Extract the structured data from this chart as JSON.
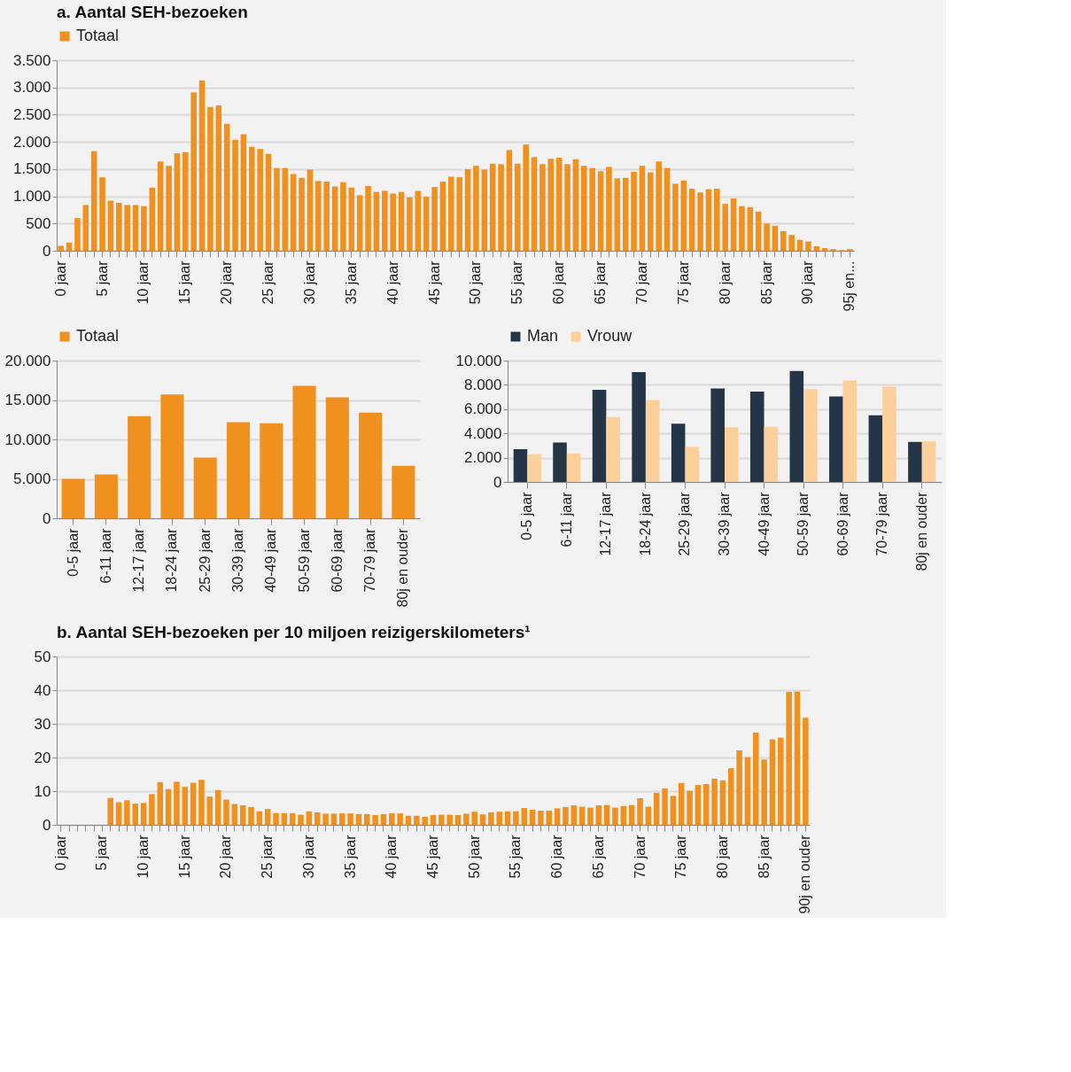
{
  "chart_data": [
    {
      "type": "bar",
      "title": "a. Aantal SEH-bezoeken",
      "legend": "top",
      "grid": "y",
      "categories": [
        "0 jaar",
        null,
        null,
        null,
        null,
        "5 jaar",
        null,
        null,
        null,
        null,
        "10 jaar",
        null,
        null,
        null,
        null,
        "15 jaar",
        null,
        null,
        null,
        null,
        "20 jaar",
        null,
        null,
        null,
        null,
        "25 jaar",
        null,
        null,
        null,
        null,
        "30 jaar",
        null,
        null,
        null,
        null,
        "35 jaar",
        null,
        null,
        null,
        null,
        "40 jaar",
        null,
        null,
        null,
        null,
        "45 jaar",
        null,
        null,
        null,
        null,
        "50 jaar",
        null,
        null,
        null,
        null,
        "55 jaar",
        null,
        null,
        null,
        null,
        "60 jaar",
        null,
        null,
        null,
        null,
        "65 jaar",
        null,
        null,
        null,
        null,
        "70 jaar",
        null,
        null,
        null,
        null,
        "75 jaar",
        null,
        null,
        null,
        null,
        "80 jaar",
        null,
        null,
        null,
        null,
        "85 jaar",
        null,
        null,
        null,
        null,
        "90 jaar",
        null,
        null,
        null,
        null,
        "95j en..."
      ],
      "series": [
        {
          "name": "Totaal",
          "color": "#f0901e",
          "values": [
            90,
            150,
            600,
            840,
            1830,
            1350,
            920,
            880,
            840,
            840,
            820,
            1160,
            1640,
            1560,
            1790,
            1810,
            2910,
            3130,
            2640,
            2670,
            2330,
            2040,
            2140,
            1910,
            1870,
            1780,
            1520,
            1520,
            1410,
            1340,
            1490,
            1280,
            1270,
            1180,
            1260,
            1160,
            1020,
            1190,
            1080,
            1100,
            1050,
            1080,
            980,
            1100,
            990,
            1170,
            1270,
            1360,
            1350,
            1500,
            1560,
            1490,
            1600,
            1590,
            1850,
            1600,
            1950,
            1720,
            1590,
            1690,
            1710,
            1590,
            1680,
            1560,
            1520,
            1460,
            1540,
            1330,
            1340,
            1450,
            1560,
            1440,
            1640,
            1520,
            1230,
            1290,
            1140,
            1070,
            1130,
            1140,
            860,
            960,
            820,
            800,
            720,
            500,
            460,
            360,
            290,
            200,
            170,
            80,
            50,
            30,
            10,
            30
          ]
        }
      ],
      "ylim": [
        0,
        3500
      ],
      "yticks": [
        0,
        500,
        {
          "value": 1000,
          "label": "1.000"
        },
        {
          "value": 1500,
          "label": "1.500"
        },
        {
          "value": 2000,
          "label": "2.000"
        },
        {
          "value": 2500,
          "label": "2.500"
        },
        {
          "value": 3000,
          "label": "3.000"
        },
        {
          "value": 3500,
          "label": "3.500"
        }
      ]
    },
    {
      "type": "bar",
      "legend": "top",
      "grid": "y",
      "categories": [
        "0-5 jaar",
        "6-11 jaar",
        "12-17 jaar",
        "18-24 jaar",
        "25-29 jaar",
        "30-39 jaar",
        "40-49 jaar",
        "50-59 jaar",
        "60-69 jaar",
        "70-79 jaar",
        "80j en ouder"
      ],
      "series": [
        {
          "name": "Totaal",
          "color": "#f0901e",
          "values": [
            5000,
            5550,
            12950,
            15700,
            7700,
            12200,
            12050,
            16800,
            15350,
            13400,
            6650
          ]
        }
      ],
      "ylim": [
        0,
        20000
      ],
      "yticks": [
        0,
        {
          "value": 5000,
          "label": "5.000"
        },
        {
          "value": 10000,
          "label": "10.000"
        },
        {
          "value": 15000,
          "label": "15.000"
        },
        {
          "value": 20000,
          "label": "20.000"
        }
      ]
    },
    {
      "type": "bar",
      "legend": "top",
      "grid": "y",
      "categories": [
        "0-5 jaar",
        "6-11 jaar",
        "12-17 jaar",
        "18-24 jaar",
        "25-29 jaar",
        "30-39 jaar",
        "40-49 jaar",
        "50-59 jaar",
        "60-69 jaar",
        "70-79 jaar",
        "80j en ouder"
      ],
      "series": [
        {
          "name": "Man",
          "color": "#253548",
          "values": [
            2700,
            3250,
            7600,
            9050,
            4800,
            7700,
            7450,
            9150,
            7050,
            5500,
            3300
          ]
        },
        {
          "name": "Vrouw",
          "color": "#fccf9b",
          "values": [
            2300,
            2350,
            5350,
            6750,
            2900,
            4500,
            4550,
            7650,
            8350,
            7850,
            3350
          ]
        }
      ],
      "ylim": [
        0,
        10000
      ],
      "yticks": [
        0,
        {
          "value": 2000,
          "label": "2.000"
        },
        {
          "value": 4000,
          "label": "4.000"
        },
        {
          "value": 6000,
          "label": "6.000"
        },
        {
          "value": 8000,
          "label": "8.000"
        },
        {
          "value": 10000,
          "label": "10.000"
        }
      ]
    },
    {
      "type": "bar",
      "title": "b. Aantal SEH-bezoeken per 10 miljoen reizigerskilometers¹",
      "grid": "y",
      "categories": [
        "0 jaar",
        null,
        null,
        null,
        null,
        "5 jaar",
        null,
        null,
        null,
        null,
        "10 jaar",
        null,
        null,
        null,
        null,
        "15 jaar",
        null,
        null,
        null,
        null,
        "20 jaar",
        null,
        null,
        null,
        null,
        "25 jaar",
        null,
        null,
        null,
        null,
        "30 jaar",
        null,
        null,
        null,
        null,
        "35 jaar",
        null,
        null,
        null,
        null,
        "40 jaar",
        null,
        null,
        null,
        null,
        "45 jaar",
        null,
        null,
        null,
        null,
        "50 jaar",
        null,
        null,
        null,
        null,
        "55 jaar",
        null,
        null,
        null,
        null,
        "60 jaar",
        null,
        null,
        null,
        null,
        "65 jaar",
        null,
        null,
        null,
        null,
        "70 jaar",
        null,
        null,
        null,
        null,
        "75 jaar",
        null,
        null,
        null,
        null,
        "80 jaar",
        null,
        null,
        null,
        null,
        "85 jaar",
        null,
        null,
        null,
        null,
        "90j en ouder"
      ],
      "series": [
        {
          "color": "#f0901e",
          "values": [
            null,
            null,
            null,
            null,
            null,
            null,
            8.0,
            6.7,
            7.3,
            6.3,
            6.5,
            9.1,
            12.7,
            10.6,
            12.8,
            11.3,
            12.5,
            13.4,
            8.4,
            10.3,
            7.5,
            6.2,
            5.8,
            5.3,
            4.0,
            4.7,
            3.5,
            3.5,
            3.4,
            3.0,
            4.0,
            3.7,
            3.3,
            3.3,
            3.4,
            3.4,
            3.2,
            3.2,
            2.9,
            3.2,
            3.4,
            3.4,
            2.7,
            2.7,
            2.4,
            2.9,
            3.0,
            3.0,
            2.9,
            3.3,
            3.9,
            3.1,
            3.7,
            3.9,
            4.0,
            4.0,
            5.0,
            4.5,
            4.2,
            4.2,
            4.9,
            5.3,
            5.8,
            5.4,
            5.1,
            5.8,
            5.9,
            5.1,
            5.6,
            5.9,
            7.9,
            5.4,
            9.5,
            10.8,
            8.6,
            12.4,
            10.1,
            11.8,
            12.1,
            13.7,
            13.2,
            16.8,
            22.1,
            20.1,
            27.4,
            19.4,
            25.4,
            25.9,
            39.5,
            39.6,
            31.8
          ]
        }
      ],
      "ylim": [
        0,
        50
      ],
      "yticks": [
        0,
        10,
        20,
        30,
        40,
        50
      ]
    }
  ]
}
